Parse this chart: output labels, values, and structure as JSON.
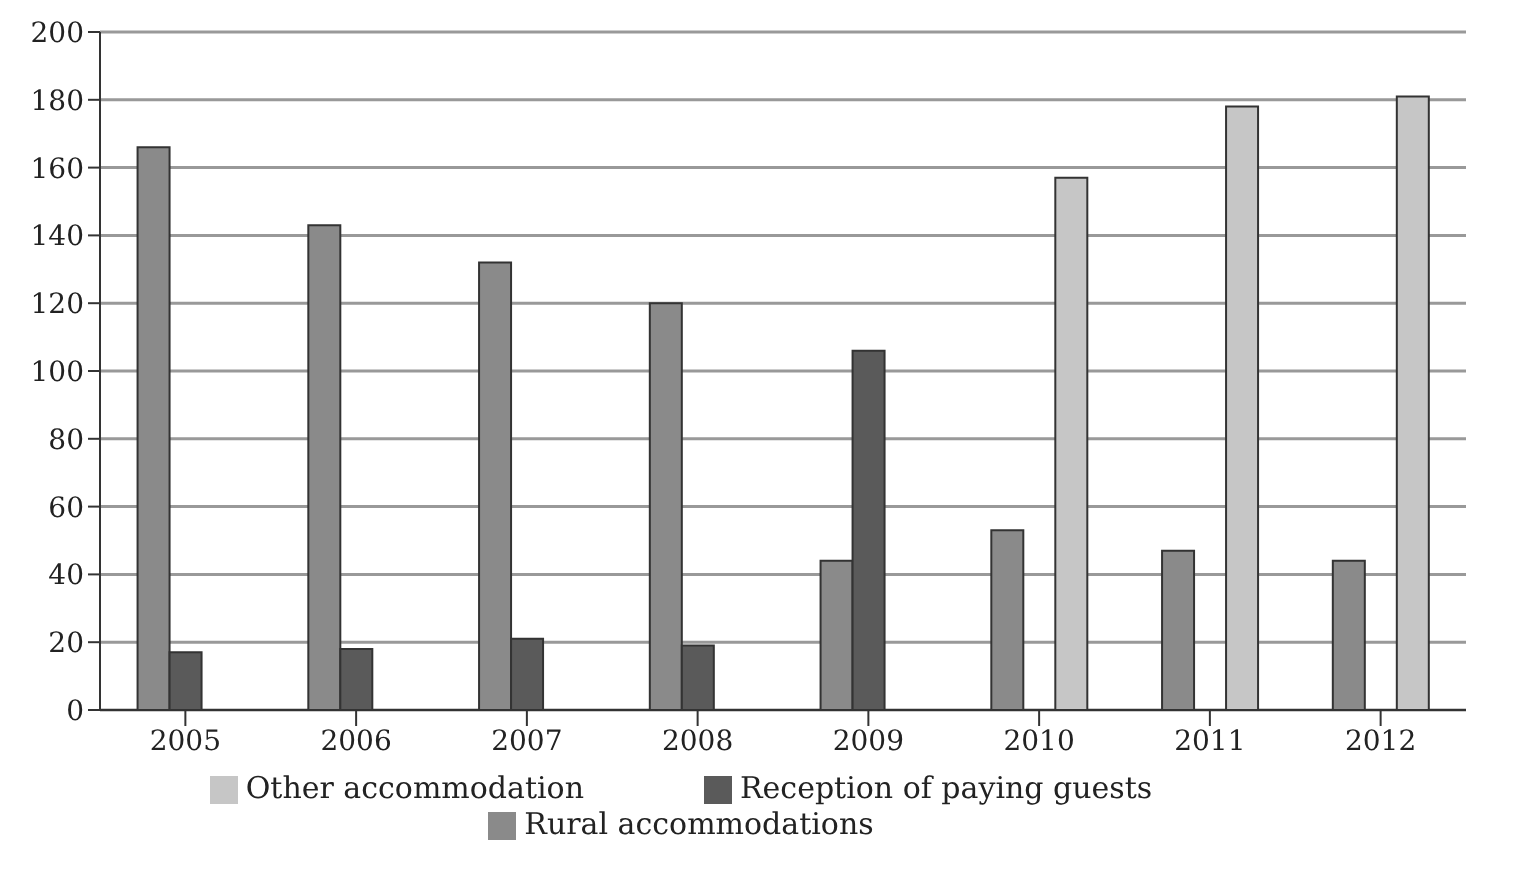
{
  "chart_data": {
    "type": "bar",
    "categories": [
      "2005",
      "2006",
      "2007",
      "2008",
      "2009",
      "2010",
      "2011",
      "2012"
    ],
    "series": [
      {
        "name": "Rural accommodations",
        "color": "#8a8a8a",
        "values": [
          166,
          143,
          132,
          120,
          44,
          53,
          47,
          44
        ]
      },
      {
        "name": "Reception of paying guests",
        "color": "#5a5a5a",
        "values": [
          17,
          18,
          21,
          19,
          106,
          null,
          null,
          null
        ]
      },
      {
        "name": "Other accommodation",
        "color": "#c6c6c6",
        "values": [
          null,
          null,
          null,
          null,
          null,
          157,
          178,
          181
        ]
      }
    ],
    "ylim": [
      0,
      200
    ],
    "yticks": [
      0,
      20,
      40,
      60,
      80,
      100,
      120,
      140,
      160,
      180,
      200
    ],
    "grid": "y",
    "legend": "bottom"
  }
}
